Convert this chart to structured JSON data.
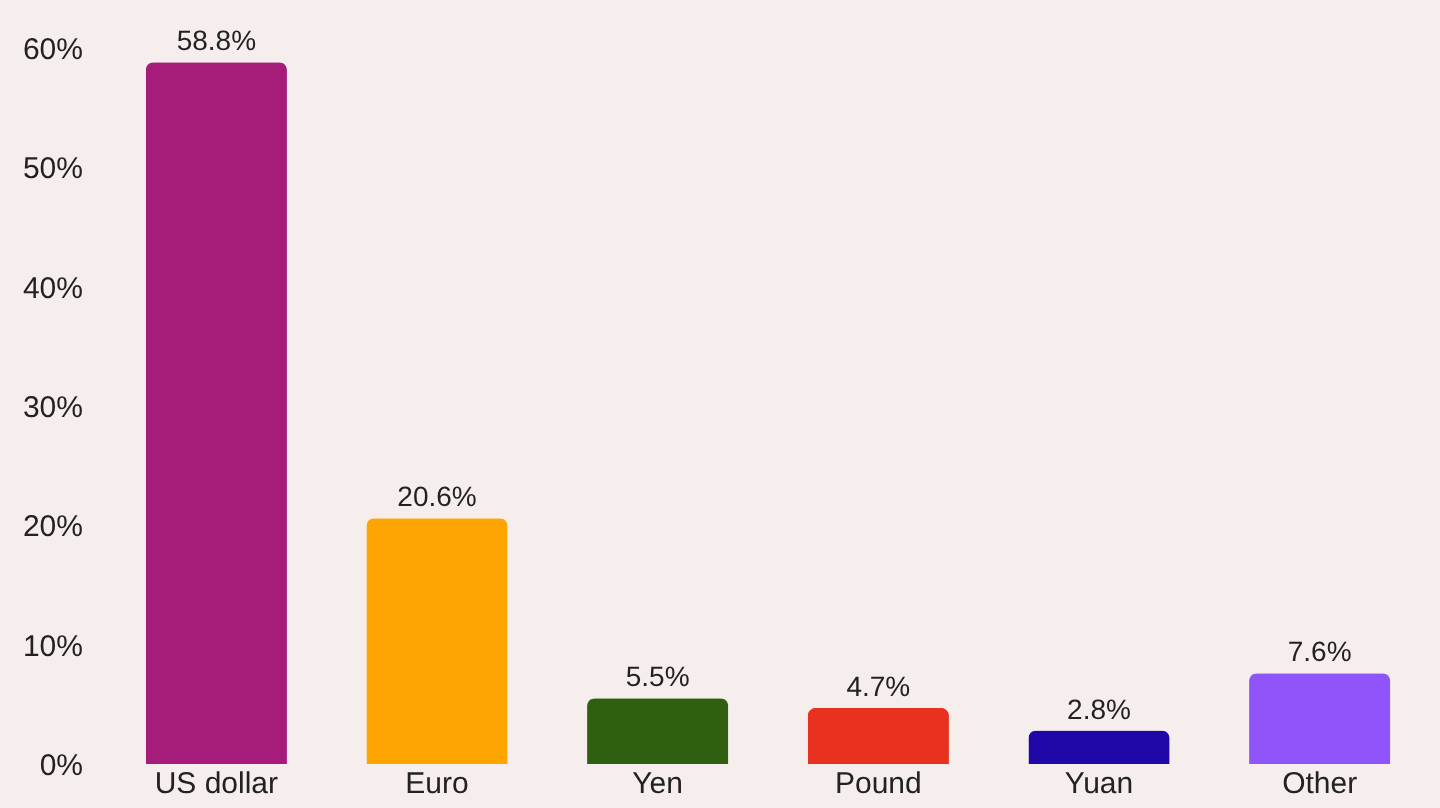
{
  "chart_data": {
    "type": "bar",
    "categories": [
      "US dollar",
      "Euro",
      "Yen",
      "Pound",
      "Yuan",
      "Other"
    ],
    "values": [
      58.8,
      20.6,
      5.5,
      4.7,
      2.8,
      7.6
    ],
    "value_labels": [
      "58.8%",
      "20.6%",
      "5.5%",
      "4.7%",
      "2.8%",
      "7.6%"
    ],
    "colors": [
      "#a51c7b",
      "#ffa502",
      "#2f5f10",
      "#e8321f",
      "#2008a8",
      "#9055fa"
    ],
    "ylim": [
      0,
      60
    ],
    "yticks": [
      {
        "value": 0,
        "label": "0%"
      },
      {
        "value": 10,
        "label": "10%"
      },
      {
        "value": 20,
        "label": "20%"
      },
      {
        "value": 30,
        "label": "30%"
      },
      {
        "value": 40,
        "label": "40%"
      },
      {
        "value": 50,
        "label": "50%"
      },
      {
        "value": 60,
        "label": "60%"
      }
    ],
    "grid": false
  }
}
